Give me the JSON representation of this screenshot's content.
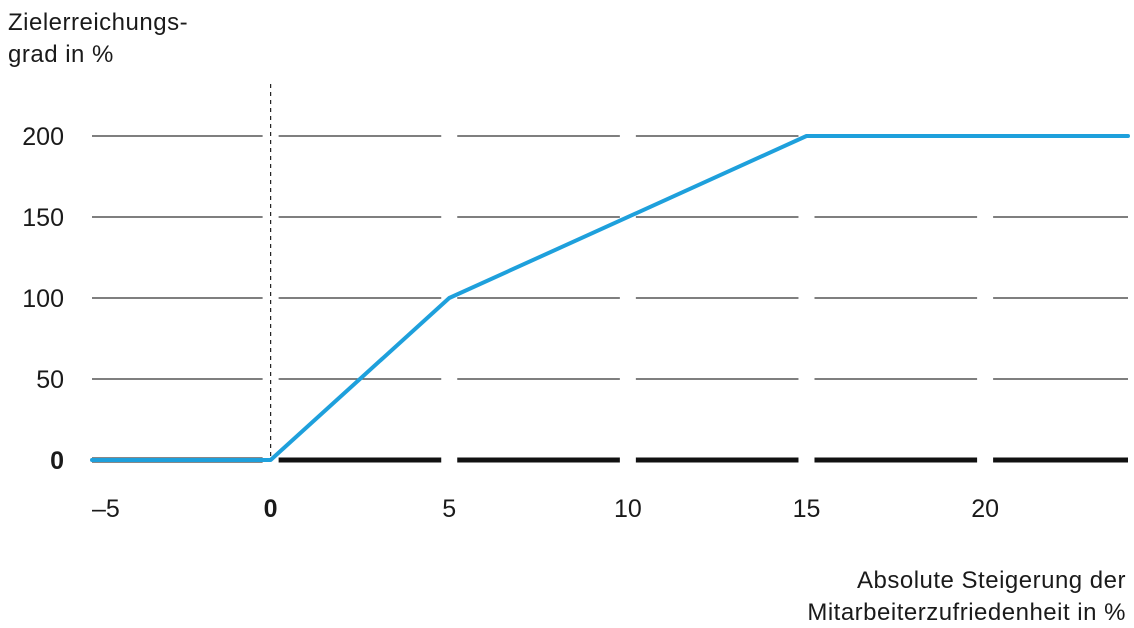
{
  "chart_data": {
    "type": "line",
    "ylabel_lines": [
      "Zielerreichungs-",
      "grad in %"
    ],
    "xlabel_lines": [
      "Absolute Steigerung der",
      "Mitarbeiterzufriedenheit  in %"
    ],
    "x_ticks": [
      {
        "value": -5,
        "label": "–5"
      },
      {
        "value": 0,
        "label": "0"
      },
      {
        "value": 5,
        "label": "5"
      },
      {
        "value": 10,
        "label": "10"
      },
      {
        "value": 15,
        "label": "15"
      },
      {
        "value": 20,
        "label": "20"
      }
    ],
    "y_ticks": [
      {
        "value": 0,
        "label": "0"
      },
      {
        "value": 50,
        "label": "50"
      },
      {
        "value": 100,
        "label": "100"
      },
      {
        "value": 150,
        "label": "150"
      },
      {
        "value": 200,
        "label": "200"
      }
    ],
    "xlim": [
      -5,
      24
    ],
    "ylim": [
      0,
      200
    ],
    "grid": true,
    "series": [
      {
        "color": "#1ea0dc",
        "points": [
          [
            -5,
            0
          ],
          [
            0,
            0
          ],
          [
            5,
            100
          ],
          [
            15,
            200
          ],
          [
            24,
            200
          ]
        ]
      }
    ],
    "reference_line_x": 0,
    "colors": {
      "line": "#1ea0dc",
      "grid": "#555555",
      "baseline": "#111111"
    }
  }
}
